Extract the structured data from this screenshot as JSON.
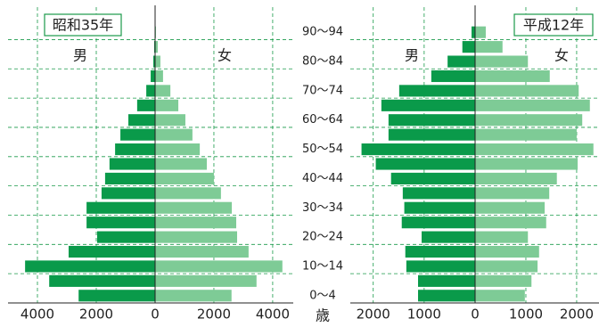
{
  "chart_data": {
    "type": "pyramid",
    "axis_label": "歳",
    "categories": [
      "0～4",
      null,
      "10～14",
      null,
      "20～24",
      null,
      "30～34",
      null,
      "40～44",
      null,
      "50～54",
      null,
      "60～64",
      null,
      "70～74",
      null,
      "80～84",
      null,
      "90～94"
    ],
    "panels": [
      {
        "title": "昭和35年",
        "male_xlim": [
          0,
          5000
        ],
        "male_xticks": [
          0,
          2000,
          4000
        ],
        "female_xlim": [
          0,
          4700
        ],
        "female_xticks": [
          2000,
          4000
        ],
        "series": [
          {
            "name": "男",
            "color": "#0a9a4a",
            "values": [
              2600,
              3600,
              4420,
              2940,
              1970,
              2330,
              2330,
              1820,
              1700,
              1550,
              1360,
              1180,
              910,
              610,
              300,
              150,
              60,
              30,
              10
            ]
          },
          {
            "name": "女",
            "color": "#7ecb96",
            "values": [
              2600,
              3450,
              4330,
              3180,
              2790,
              2760,
              2610,
              2240,
              2000,
              1760,
              1520,
              1270,
              1030,
              790,
              520,
              270,
              180,
              90,
              30
            ]
          }
        ]
      },
      {
        "title": "平成12年",
        "male_xlim": [
          0,
          2450
        ],
        "male_xticks": [
          0,
          1000,
          2000
        ],
        "female_xlim": [
          0,
          2440
        ],
        "female_xticks": [
          1000,
          2000
        ],
        "series": [
          {
            "name": "男",
            "color": "#0a9a4a",
            "values": [
              1120,
              1120,
              1350,
              1370,
              1050,
              1440,
              1390,
              1420,
              1650,
              1950,
              2230,
              1700,
              1700,
              1840,
              1490,
              860,
              540,
              250,
              70
            ]
          },
          {
            "name": "女",
            "color": "#7ecb96",
            "values": [
              980,
              1110,
              1230,
              1260,
              1040,
              1400,
              1370,
              1460,
              1610,
              2020,
              2330,
              2000,
              2110,
              2260,
              2040,
              1470,
              1040,
              540,
              210
            ]
          }
        ]
      }
    ]
  }
}
